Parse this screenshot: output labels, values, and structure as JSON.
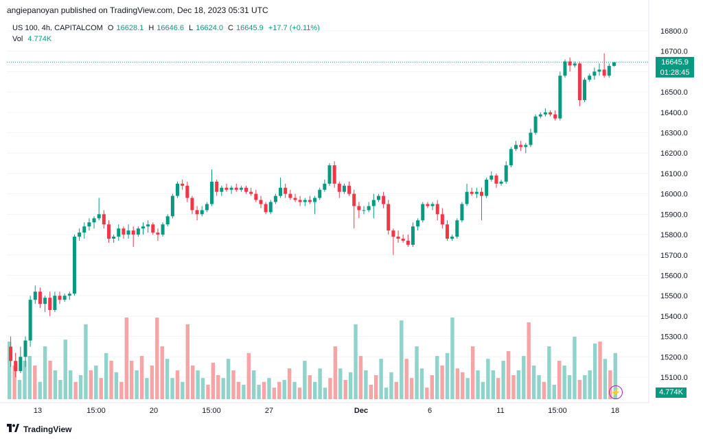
{
  "header": {
    "publisher": "angiepanoyan published on TradingView.com, Dec 18, 2023 05:31 UTC"
  },
  "legend": {
    "symbol": "US 100, 4h, CAPITALCOM",
    "o_label": "O",
    "o_value": "16628.1",
    "h_label": "H",
    "h_value": "16646.6",
    "l_label": "L",
    "l_value": "16624.0",
    "c_label": "C",
    "c_value": "16645.9",
    "change": "+17.7 (+0.11%)",
    "vol_label": "Vol",
    "vol_value": "4.774K"
  },
  "price_tag": {
    "price": "16645.9",
    "countdown": "01:28:45"
  },
  "vol_tag": "4.774K",
  "colors": {
    "up": "#089981",
    "down": "#f23645",
    "vol_up": "#8fd3cb",
    "vol_down": "#f5a5a5",
    "grid": "#f0f3fa",
    "last_price_line": "#089981"
  },
  "footer": {
    "brand": "TradingView",
    "logo_icon": "tradingview-logo-icon"
  },
  "icons": {
    "bolt": "lightning-bolt-icon"
  },
  "chart_data": {
    "type": "candlestick",
    "y_axis": {
      "ticks": [
        "16800.0",
        "16700.0",
        "16600.0",
        "16500.0",
        "16400.0",
        "16300.0",
        "16200.0",
        "16100.0",
        "16000.0",
        "15900.0",
        "15800.0",
        "15700.0",
        "15600.0",
        "15500.0",
        "15400.0",
        "15300.0",
        "15200.0",
        "15100.0"
      ],
      "range": [
        15050,
        16850
      ]
    },
    "x_axis": {
      "tick_labels": [
        "13",
        "15:00",
        "20",
        "15:00",
        "27",
        "Dec",
        "6",
        "11",
        "15:00",
        "18"
      ]
    },
    "candles": [
      [
        15250,
        15300,
        15150,
        15180
      ],
      [
        15180,
        15220,
        15100,
        15130
      ],
      [
        15130,
        15250,
        15120,
        15200
      ],
      [
        15200,
        15300,
        15150,
        15280
      ],
      [
        15280,
        15500,
        15250,
        15480
      ],
      [
        15480,
        15550,
        15460,
        15520
      ],
      [
        15520,
        15540,
        15440,
        15460
      ],
      [
        15460,
        15500,
        15420,
        15490
      ],
      [
        15490,
        15520,
        15400,
        15430
      ],
      [
        15430,
        15520,
        15420,
        15500
      ],
      [
        15500,
        15520,
        15460,
        15480
      ],
      [
        15480,
        15510,
        15470,
        15500
      ],
      [
        15500,
        15520,
        15480,
        15510
      ],
      [
        15510,
        15800,
        15500,
        15790
      ],
      [
        15790,
        15830,
        15770,
        15810
      ],
      [
        15810,
        15860,
        15780,
        15840
      ],
      [
        15840,
        15880,
        15820,
        15860
      ],
      [
        15860,
        15890,
        15830,
        15880
      ],
      [
        15880,
        15980,
        15870,
        15900
      ],
      [
        15900,
        15920,
        15830,
        15850
      ],
      [
        15850,
        15870,
        15760,
        15780
      ],
      [
        15780,
        15800,
        15760,
        15790
      ],
      [
        15790,
        15850,
        15770,
        15830
      ],
      [
        15830,
        15840,
        15780,
        15800
      ],
      [
        15800,
        15850,
        15780,
        15820
      ],
      [
        15820,
        15840,
        15740,
        15800
      ],
      [
        15800,
        15840,
        15790,
        15830
      ],
      [
        15830,
        15860,
        15800,
        15840
      ],
      [
        15840,
        15870,
        15810,
        15850
      ],
      [
        15850,
        15860,
        15800,
        15810
      ],
      [
        15810,
        15830,
        15770,
        15800
      ],
      [
        15800,
        15860,
        15790,
        15850
      ],
      [
        15850,
        15900,
        15840,
        15890
      ],
      [
        15890,
        16000,
        15880,
        15990
      ],
      [
        15990,
        16060,
        15980,
        16050
      ],
      [
        16050,
        16070,
        16020,
        16040
      ],
      [
        16040,
        16060,
        15960,
        15980
      ],
      [
        15980,
        15990,
        15900,
        15920
      ],
      [
        15920,
        15940,
        15870,
        15900
      ],
      [
        15900,
        15940,
        15890,
        15920
      ],
      [
        15920,
        15960,
        15910,
        15950
      ],
      [
        15950,
        16120,
        15940,
        16060
      ],
      [
        16060,
        16070,
        15990,
        16010
      ],
      [
        16010,
        16040,
        15990,
        16030
      ],
      [
        16030,
        16050,
        16010,
        16020
      ],
      [
        16020,
        16040,
        16000,
        16030
      ],
      [
        16030,
        16050,
        16010,
        16020
      ],
      [
        16020,
        16040,
        16010,
        16030
      ],
      [
        16030,
        16040,
        16000,
        16010
      ],
      [
        16010,
        16030,
        15990,
        16000
      ],
      [
        16000,
        16020,
        15960,
        15970
      ],
      [
        15970,
        15990,
        15930,
        15950
      ],
      [
        15950,
        15960,
        15900,
        15910
      ],
      [
        15910,
        15970,
        15900,
        15960
      ],
      [
        15960,
        16000,
        15950,
        15990
      ],
      [
        15990,
        16080,
        15980,
        16030
      ],
      [
        16030,
        16050,
        15980,
        16000
      ],
      [
        16000,
        16020,
        15970,
        15980
      ],
      [
        15980,
        16000,
        15960,
        15970
      ],
      [
        15970,
        15990,
        15940,
        15960
      ],
      [
        15960,
        15980,
        15940,
        15970
      ],
      [
        15970,
        15990,
        15950,
        15960
      ],
      [
        15960,
        15990,
        15900,
        15980
      ],
      [
        15980,
        16030,
        15970,
        16020
      ],
      [
        16020,
        16070,
        16010,
        16050
      ],
      [
        16050,
        16150,
        16040,
        16140
      ],
      [
        16140,
        16160,
        16030,
        16050
      ],
      [
        16050,
        16060,
        15980,
        16010
      ],
      [
        16010,
        16050,
        16000,
        16040
      ],
      [
        16040,
        16060,
        15990,
        16000
      ],
      [
        16000,
        16020,
        15830,
        15940
      ],
      [
        15940,
        15960,
        15880,
        15920
      ],
      [
        15920,
        15940,
        15900,
        15920
      ],
      [
        15920,
        15960,
        15910,
        15940
      ],
      [
        15940,
        16000,
        15880,
        15970
      ],
      [
        15970,
        16000,
        15960,
        15990
      ],
      [
        15990,
        16010,
        15930,
        15950
      ],
      [
        15950,
        15970,
        15800,
        15820
      ],
      [
        15820,
        15830,
        15700,
        15790
      ],
      [
        15790,
        15820,
        15760,
        15780
      ],
      [
        15780,
        15800,
        15760,
        15770
      ],
      [
        15770,
        15800,
        15740,
        15750
      ],
      [
        15750,
        15860,
        15740,
        15840
      ],
      [
        15840,
        15880,
        15820,
        15870
      ],
      [
        15870,
        15960,
        15860,
        15950
      ],
      [
        15950,
        15960,
        15930,
        15940
      ],
      [
        15940,
        15960,
        15920,
        15950
      ],
      [
        15950,
        15970,
        15870,
        15900
      ],
      [
        15900,
        15930,
        15830,
        15850
      ],
      [
        15850,
        15870,
        15770,
        15780
      ],
      [
        15780,
        15800,
        15770,
        15790
      ],
      [
        15790,
        15880,
        15780,
        15870
      ],
      [
        15870,
        15960,
        15860,
        15950
      ],
      [
        15950,
        16050,
        15940,
        16010
      ],
      [
        16010,
        16030,
        15990,
        16000
      ],
      [
        16000,
        16030,
        15980,
        16010
      ],
      [
        16010,
        16030,
        15870,
        15990
      ],
      [
        15990,
        16080,
        15980,
        16070
      ],
      [
        16070,
        16110,
        16060,
        16090
      ],
      [
        16090,
        16100,
        16030,
        16050
      ],
      [
        16050,
        16070,
        16040,
        16060
      ],
      [
        16060,
        16160,
        16050,
        16140
      ],
      [
        16140,
        16230,
        16130,
        16220
      ],
      [
        16220,
        16260,
        16210,
        16240
      ],
      [
        16240,
        16260,
        16210,
        16230
      ],
      [
        16230,
        16250,
        16200,
        16240
      ],
      [
        16240,
        16320,
        16230,
        16300
      ],
      [
        16300,
        16390,
        16290,
        16380
      ],
      [
        16380,
        16400,
        16370,
        16390
      ],
      [
        16390,
        16420,
        16380,
        16400
      ],
      [
        16400,
        16410,
        16380,
        16390
      ],
      [
        16390,
        16410,
        16360,
        16370
      ],
      [
        16370,
        16600,
        16360,
        16580
      ],
      [
        16580,
        16660,
        16570,
        16650
      ],
      [
        16650,
        16670,
        16600,
        16630
      ],
      [
        16630,
        16650,
        16620,
        16640
      ],
      [
        16640,
        16650,
        16430,
        16460
      ],
      [
        16460,
        16570,
        16450,
        16560
      ],
      [
        16560,
        16590,
        16550,
        16580
      ],
      [
        16580,
        16620,
        16560,
        16600
      ],
      [
        16600,
        16640,
        16580,
        16610
      ],
      [
        16610,
        16690,
        16570,
        16580
      ],
      [
        16580,
        16640,
        16570,
        16628
      ],
      [
        16628,
        16646.6,
        16624,
        16645.9
      ]
    ],
    "volumes": [
      0.2,
      0.08,
      0.16,
      0.12,
      0.2,
      0.12,
      0.08,
      0.16,
      0.2,
      0.16,
      0.16,
      0.56,
      0.16,
      0.12,
      0.08,
      0.12,
      0.2,
      0.32,
      0.12,
      0.08,
      0.16,
      0.2,
      0.08,
      0.32,
      0.2,
      0.12,
      0.12,
      0.16,
      0.12,
      0.08,
      0.16,
      0.2,
      0.08,
      0.16,
      0.2,
      0.12,
      0.08,
      0.12,
      0.12,
      0.08,
      0.16,
      0.72,
      0.2,
      0.28,
      0.2,
      0.12,
      0.12,
      0.2,
      0.08,
      0.16,
      0.12,
      0.08,
      0.16,
      0.12,
      0.2,
      0.2,
      0.16,
      0.16,
      0.12,
      0.08,
      0.2,
      0.16,
      0.12,
      0.2,
      0.08,
      0.24,
      0.12,
      0.16,
      0.28,
      0.12,
      0.08,
      0.28,
      0.16,
      0.12,
      0.08,
      0.2,
      0.16,
      0.12,
      0.12,
      0.08,
      0.16,
      0.12,
      0.12,
      0.08,
      0.16,
      0.24,
      0.16,
      0.2,
      0.12,
      0.12,
      0.08,
      0.12,
      0.2,
      0.12,
      0.16,
      0.12,
      0.2,
      0.2,
      0.12,
      0.08,
      0.16,
      0.12,
      0.12,
      0.16,
      0.12,
      0.12,
      0.12,
      0.12,
      0.2,
      0.16,
      0.16,
      0.08,
      0.16,
      0.12,
      0.08,
      0.24,
      0.16,
      0.12,
      0.08,
      0.24
    ],
    "volume_bars_visual": [
      [
        0.6,
        1
      ],
      [
        0.35,
        0
      ],
      [
        0.2,
        1
      ],
      [
        0.4,
        1
      ],
      [
        0.45,
        1
      ],
      [
        0.35,
        0
      ],
      [
        0.18,
        1
      ],
      [
        0.55,
        1
      ],
      [
        0.4,
        0
      ],
      [
        0.3,
        1
      ],
      [
        0.2,
        1
      ],
      [
        0.62,
        1
      ],
      [
        0.3,
        1
      ],
      [
        0.18,
        0
      ],
      [
        0.25,
        1
      ],
      [
        0.78,
        1
      ],
      [
        0.3,
        0
      ],
      [
        0.35,
        1
      ],
      [
        0.22,
        0
      ],
      [
        0.48,
        1
      ],
      [
        0.4,
        0
      ],
      [
        0.28,
        1
      ],
      [
        0.18,
        0
      ],
      [
        0.85,
        0
      ],
      [
        0.4,
        0
      ],
      [
        0.3,
        1
      ],
      [
        0.45,
        0
      ],
      [
        0.22,
        1
      ],
      [
        0.35,
        0
      ],
      [
        0.85,
        0
      ],
      [
        0.55,
        0
      ],
      [
        0.42,
        1
      ],
      [
        0.22,
        1
      ],
      [
        0.3,
        0
      ],
      [
        0.18,
        1
      ],
      [
        0.78,
        0
      ],
      [
        0.35,
        0
      ],
      [
        0.3,
        1
      ],
      [
        0.22,
        1
      ],
      [
        0.15,
        0
      ],
      [
        0.38,
        0
      ],
      [
        0.25,
        0
      ],
      [
        0.22,
        1
      ],
      [
        0.42,
        1
      ],
      [
        0.3,
        0
      ],
      [
        0.18,
        0
      ],
      [
        0.15,
        1
      ],
      [
        0.48,
        0
      ],
      [
        0.3,
        1
      ],
      [
        0.15,
        1
      ],
      [
        0.18,
        0
      ],
      [
        0.22,
        1
      ],
      [
        0.12,
        0
      ],
      [
        0.18,
        0
      ],
      [
        0.2,
        1
      ],
      [
        0.32,
        0
      ],
      [
        0.18,
        1
      ],
      [
        0.12,
        0
      ],
      [
        0.4,
        1
      ],
      [
        0.25,
        0
      ],
      [
        0.18,
        1
      ],
      [
        0.32,
        1
      ],
      [
        0.12,
        1
      ],
      [
        0.22,
        0
      ],
      [
        0.55,
        0
      ],
      [
        0.32,
        1
      ],
      [
        0.2,
        0
      ],
      [
        0.28,
        1
      ],
      [
        0.78,
        1
      ],
      [
        0.45,
        0
      ],
      [
        0.3,
        1
      ],
      [
        0.15,
        0
      ],
      [
        0.25,
        0
      ],
      [
        0.42,
        1
      ],
      [
        0.12,
        1
      ],
      [
        0.28,
        1
      ],
      [
        0.18,
        0
      ],
      [
        0.82,
        1
      ],
      [
        0.42,
        0
      ],
      [
        0.22,
        0
      ],
      [
        0.55,
        1
      ],
      [
        0.32,
        1
      ],
      [
        0.12,
        0
      ],
      [
        0.25,
        0
      ],
      [
        0.45,
        1
      ],
      [
        0.35,
        0
      ],
      [
        0.48,
        1
      ],
      [
        0.85,
        1
      ],
      [
        0.32,
        0
      ],
      [
        0.28,
        0
      ],
      [
        0.22,
        1
      ],
      [
        0.55,
        0
      ],
      [
        0.3,
        1
      ],
      [
        0.18,
        1
      ],
      [
        0.42,
        1
      ],
      [
        0.3,
        1
      ],
      [
        0.22,
        0
      ],
      [
        0.4,
        1
      ],
      [
        0.5,
        0
      ],
      [
        0.25,
        0
      ],
      [
        0.3,
        1
      ],
      [
        0.45,
        1
      ],
      [
        0.8,
        0
      ],
      [
        0.35,
        1
      ],
      [
        0.25,
        1
      ],
      [
        0.18,
        0
      ],
      [
        0.55,
        1
      ],
      [
        0.15,
        1
      ],
      [
        0.4,
        0
      ],
      [
        0.35,
        1
      ],
      [
        0.25,
        1
      ],
      [
        0.65,
        1
      ],
      [
        0.2,
        0
      ],
      [
        0.25,
        1
      ],
      [
        0.3,
        1
      ],
      [
        0.58,
        1
      ],
      [
        0.6,
        0
      ],
      [
        0.42,
        1
      ],
      [
        0.3,
        0
      ],
      [
        0.48,
        1
      ]
    ]
  }
}
